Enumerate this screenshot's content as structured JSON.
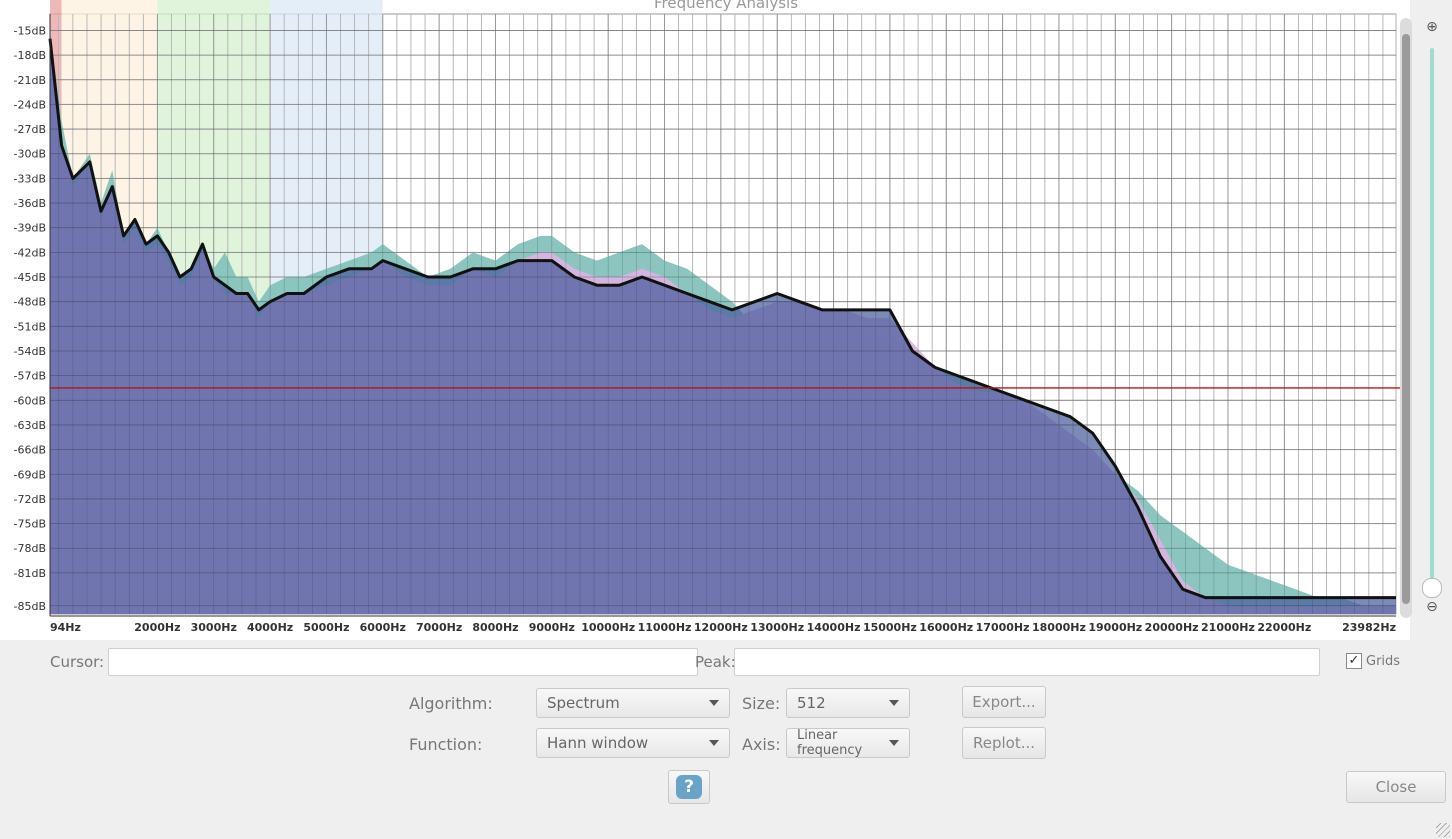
{
  "window": {
    "title": "Frequency Analysis"
  },
  "chart_data": {
    "type": "area",
    "xlabel": "",
    "ylabel": "",
    "x_ticks": [
      {
        "x": 94,
        "label": "94Hz"
      },
      {
        "x": 2000,
        "label": "2000Hz"
      },
      {
        "x": 3000,
        "label": "3000Hz"
      },
      {
        "x": 4000,
        "label": "4000Hz"
      },
      {
        "x": 5000,
        "label": "5000Hz"
      },
      {
        "x": 6000,
        "label": "6000Hz"
      },
      {
        "x": 7000,
        "label": "7000Hz"
      },
      {
        "x": 8000,
        "label": "8000Hz"
      },
      {
        "x": 9000,
        "label": "9000Hz"
      },
      {
        "x": 10000,
        "label": "10000Hz"
      },
      {
        "x": 11000,
        "label": "11000Hz"
      },
      {
        "x": 12000,
        "label": "12000Hz"
      },
      {
        "x": 13000,
        "label": "13000Hz"
      },
      {
        "x": 14000,
        "label": "14000Hz"
      },
      {
        "x": 15000,
        "label": "15000Hz"
      },
      {
        "x": 16000,
        "label": "16000Hz"
      },
      {
        "x": 17000,
        "label": "17000Hz"
      },
      {
        "x": 18000,
        "label": "18000Hz"
      },
      {
        "x": 19000,
        "label": "19000Hz"
      },
      {
        "x": 20000,
        "label": "20000Hz"
      },
      {
        "x": 21000,
        "label": "21000Hz"
      },
      {
        "x": 22000,
        "label": "22000Hz"
      },
      {
        "x": 23982,
        "label": "23982Hz"
      }
    ],
    "y_ticks": [
      {
        "y": -15,
        "label": "-15dB"
      },
      {
        "y": -18,
        "label": "-18dB"
      },
      {
        "y": -21,
        "label": "-21dB"
      },
      {
        "y": -24,
        "label": "-24dB"
      },
      {
        "y": -27,
        "label": "-27dB"
      },
      {
        "y": -30,
        "label": "-30dB"
      },
      {
        "y": -33,
        "label": "-33dB"
      },
      {
        "y": -36,
        "label": "-36dB"
      },
      {
        "y": -39,
        "label": "-39dB"
      },
      {
        "y": -42,
        "label": "-42dB"
      },
      {
        "y": -45,
        "label": "-45dB"
      },
      {
        "y": -48,
        "label": "-48dB"
      },
      {
        "y": -51,
        "label": "-51dB"
      },
      {
        "y": -54,
        "label": "-54dB"
      },
      {
        "y": -57,
        "label": "-57dB"
      },
      {
        "y": -60,
        "label": "-60dB"
      },
      {
        "y": -63,
        "label": "-63dB"
      },
      {
        "y": -66,
        "label": "-66dB"
      },
      {
        "y": -69,
        "label": "-69dB"
      },
      {
        "y": -72,
        "label": "-72dB"
      },
      {
        "y": -75,
        "label": "-75dB"
      },
      {
        "y": -78,
        "label": "-78dB"
      },
      {
        "y": -81,
        "label": "-81dB"
      },
      {
        "y": -85,
        "label": "-85dB"
      }
    ],
    "xlim": [
      94,
      23982
    ],
    "ylim": [
      -86,
      -13
    ],
    "grid": true,
    "bands": [
      {
        "from": 94,
        "to": 300,
        "color": "#e8a0a0"
      },
      {
        "from": 300,
        "to": 2000,
        "color": "#fdf0dc"
      },
      {
        "from": 2000,
        "to": 4000,
        "color": "#d6f0cf"
      },
      {
        "from": 4000,
        "to": 6000,
        "color": "#dbe8f7"
      }
    ],
    "cursor_level_db": -58.5,
    "series": [
      {
        "color": "#86c2bc",
        "x": [
          94,
          300,
          500,
          800,
          1000,
          1200,
          1400,
          1600,
          1800,
          2000,
          2200,
          2400,
          2600,
          2800,
          3000,
          3200,
          3400,
          3600,
          3800,
          4000,
          4300,
          4600,
          5000,
          5400,
          5800,
          6000,
          6400,
          6800,
          7200,
          7600,
          8000,
          8400,
          8800,
          9000,
          9400,
          9800,
          10200,
          10600,
          11000,
          11400,
          11800,
          12200,
          12600,
          13000,
          13400,
          13800,
          14200,
          14600,
          15000,
          15400,
          15800,
          16200,
          16600,
          17000,
          17400,
          17800,
          18200,
          18600,
          19000,
          19400,
          19800,
          20200,
          20600,
          21000,
          21400,
          21800,
          22200,
          22600,
          23000,
          23400,
          23982
        ],
        "y": [
          -15,
          -26,
          -33,
          -30,
          -36,
          -32,
          -40,
          -38,
          -41,
          -39,
          -42,
          -45,
          -44,
          -41,
          -44,
          -42,
          -45,
          -45,
          -48,
          -46,
          -45,
          -45,
          -44,
          -43,
          -42,
          -41,
          -43,
          -45,
          -44,
          -42,
          -43,
          -41,
          -40,
          -40,
          -42,
          -43,
          -42,
          -41,
          -43,
          -44,
          -46,
          -48,
          -51,
          -50,
          -50,
          -51,
          -50,
          -52,
          -52,
          -54,
          -56,
          -57,
          -58,
          -59,
          -61,
          -63,
          -65,
          -67,
          -69,
          -71,
          -74,
          -76,
          -78,
          -80,
          -81,
          -82,
          -83,
          -84,
          -84,
          -85,
          -85
        ]
      },
      {
        "color": "#d8b4e2",
        "x": [
          94,
          300,
          500,
          800,
          1000,
          1200,
          1400,
          1600,
          1800,
          2000,
          2200,
          2400,
          2600,
          2800,
          3000,
          3200,
          3400,
          3600,
          3800,
          4000,
          4300,
          4600,
          5000,
          5400,
          5800,
          6000,
          6400,
          6800,
          7200,
          7600,
          8000,
          8400,
          8800,
          9000,
          9400,
          9800,
          10200,
          10600,
          11000,
          11400,
          11800,
          12200,
          12600,
          13000,
          13400,
          13800,
          14200,
          14600,
          15000,
          15400,
          15800,
          16200,
          16600,
          17000,
          17400,
          17800,
          18200,
          18600,
          19000,
          19400,
          19800,
          20200,
          20600,
          21000,
          21400,
          21800,
          22200,
          22600,
          23000,
          23400,
          23982
        ],
        "y": [
          -16,
          -28,
          -34,
          -31,
          -38,
          -34,
          -41,
          -39,
          -42,
          -41,
          -43,
          -46,
          -45,
          -42,
          -45,
          -47,
          -47,
          -47,
          -50,
          -48,
          -47,
          -47,
          -46,
          -45,
          -44,
          -43,
          -45,
          -46,
          -46,
          -44,
          -45,
          -43,
          -42,
          -42,
          -44,
          -45,
          -45,
          -44,
          -45,
          -47,
          -49,
          -50,
          -49,
          -48,
          -48,
          -49,
          -49,
          -50,
          -50,
          -53,
          -56,
          -58,
          -59,
          -59,
          -60,
          -62,
          -64,
          -66,
          -69,
          -72,
          -77,
          -82,
          -84,
          -85,
          -85,
          -85,
          -85,
          -85,
          -85,
          -85,
          -85
        ]
      },
      {
        "color": "#111111",
        "x": [
          94,
          300,
          500,
          800,
          1000,
          1200,
          1400,
          1600,
          1800,
          2000,
          2200,
          2400,
          2600,
          2800,
          3000,
          3200,
          3400,
          3600,
          3800,
          4000,
          4300,
          4600,
          5000,
          5400,
          5800,
          6000,
          6400,
          6800,
          7200,
          7600,
          8000,
          8400,
          8800,
          9000,
          9400,
          9800,
          10200,
          10600,
          11000,
          11400,
          11800,
          12200,
          12600,
          13000,
          13400,
          13800,
          14200,
          14600,
          15000,
          15400,
          15800,
          16200,
          16600,
          17000,
          17400,
          17800,
          18200,
          18600,
          19000,
          19400,
          19800,
          20200,
          20600,
          21000,
          21400,
          21800,
          22200,
          22600,
          23000,
          23400,
          23982
        ],
        "y": [
          -16,
          -29,
          -33,
          -31,
          -37,
          -34,
          -40,
          -38,
          -41,
          -40,
          -42,
          -45,
          -44,
          -41,
          -45,
          -46,
          -47,
          -47,
          -49,
          -48,
          -47,
          -47,
          -45,
          -44,
          -44,
          -43,
          -44,
          -45,
          -45,
          -44,
          -44,
          -43,
          -43,
          -43,
          -45,
          -46,
          -46,
          -45,
          -46,
          -47,
          -48,
          -49,
          -48,
          -47,
          -48,
          -49,
          -49,
          -49,
          -49,
          -54,
          -56,
          -57,
          -58,
          -59,
          -60,
          -61,
          -62,
          -64,
          -68,
          -73,
          -79,
          -83,
          -84,
          -84,
          -84,
          -84,
          -84,
          -84,
          -84,
          -84,
          -84
        ]
      }
    ]
  },
  "controls": {
    "cursor_label": "Cursor:",
    "cursor_value": "",
    "peak_label": "Peak:",
    "peak_value": "",
    "grids_label": "Grids",
    "grids_checked": "✓",
    "algorithm_label": "Algorithm:",
    "algorithm_value": "Spectrum",
    "size_label": "Size:",
    "size_value": "512",
    "export_label": "Export...",
    "function_label": "Function:",
    "function_value": "Hann window",
    "axis_label": "Axis:",
    "axis_value": "Linear frequency",
    "replot_label": "Replot...",
    "help_glyph": "?",
    "close_label": "Close"
  },
  "icons": {
    "zoom_in": "⊕",
    "zoom_out": "⊖"
  }
}
